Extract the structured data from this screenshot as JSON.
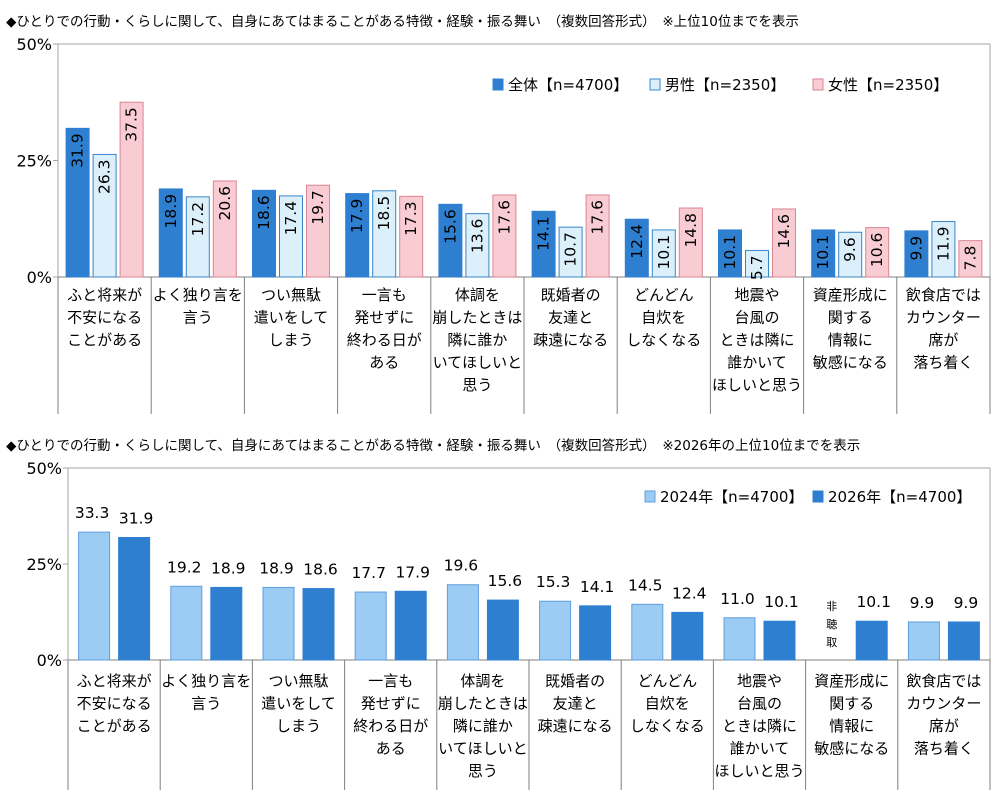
{
  "colors": {
    "total": "#2f7fd1",
    "male": "#dcf0fb",
    "male_stroke": "#3a85c8",
    "female": "#f9ccd3",
    "female_stroke": "#d98592",
    "y2024": "#9ccbf4",
    "y2024_stroke": "#5f9fdc",
    "y2026": "#2f7fd1",
    "grid": "#d9d9d9",
    "axis": "#a6a6a6"
  },
  "chart_data": [
    {
      "type": "bar",
      "title": "◆ひとりでの行動・くらしに関して、自身にあてはまることがある特徴・経験・振る舞い　（複数回答形式）　※上位10位までを表示",
      "categories": [
        [
          "ふと将来が",
          "不安になる",
          "ことがある"
        ],
        [
          "よく独り言を",
          "言う"
        ],
        [
          "つい無駄",
          "遣いをして",
          "しまう"
        ],
        [
          "一言も",
          "発せずに",
          "終わる日が",
          "ある"
        ],
        [
          "体調を",
          "崩したときは",
          "隣に誰か",
          "いてほしいと",
          "思う"
        ],
        [
          "既婚者の",
          "友達と",
          "疎遠になる"
        ],
        [
          "どんどん",
          "自炊を",
          "しなくなる"
        ],
        [
          "地震や",
          "台風の",
          "ときは隣に",
          "誰かいて",
          "ほしいと思う"
        ],
        [
          "資産形成に",
          "関する",
          "情報に",
          "敏感になる"
        ],
        [
          "飲食店では",
          "カウンター",
          "席が",
          "落ち着く"
        ]
      ],
      "series": [
        {
          "name": "全体【n=4700】",
          "values": [
            31.9,
            18.9,
            18.6,
            17.9,
            15.6,
            14.1,
            12.4,
            10.1,
            10.1,
            9.9
          ],
          "labels": [
            "31.9",
            "18.9",
            "18.6",
            "17.9",
            "15.6",
            "14.1",
            "12.4",
            "10.1",
            "10.1",
            "9.9"
          ]
        },
        {
          "name": "男性【n=2350】",
          "values": [
            26.3,
            17.2,
            17.4,
            18.5,
            13.6,
            10.7,
            10.1,
            5.7,
            9.6,
            11.9
          ],
          "labels": [
            "26.3",
            "17.2",
            "17.4",
            "18.5",
            "13.6",
            "10.7",
            "10.1",
            "5.7",
            "9.6",
            "11.9"
          ]
        },
        {
          "name": "女性【n=2350】",
          "values": [
            37.5,
            20.6,
            19.7,
            17.3,
            17.6,
            17.6,
            14.8,
            14.6,
            10.6,
            7.8
          ],
          "labels": [
            "37.5",
            "20.6",
            "19.7",
            "17.3",
            "17.6",
            "17.6",
            "14.8",
            "14.6",
            "10.6",
            "7.8"
          ]
        }
      ],
      "ylim": [
        0,
        50
      ],
      "yticks": [
        "0%",
        "25%",
        "50%"
      ],
      "legend": "top-right",
      "grid": false
    },
    {
      "type": "bar",
      "title": "◆ひとりでの行動・くらしに関して、自身にあてはまることがある特徴・経験・振る舞い　（複数回答形式）　※2026年の上位10位までを表示",
      "categories": [
        [
          "ふと将来が",
          "不安になる",
          "ことがある"
        ],
        [
          "よく独り言を",
          "言う"
        ],
        [
          "つい無駄",
          "遣いをして",
          "しまう"
        ],
        [
          "一言も",
          "発せずに",
          "終わる日が",
          "ある"
        ],
        [
          "体調を",
          "崩したときは",
          "隣に誰か",
          "いてほしいと",
          "思う"
        ],
        [
          "既婚者の",
          "友達と",
          "疎遠になる"
        ],
        [
          "どんどん",
          "自炊を",
          "しなくなる"
        ],
        [
          "地震や",
          "台風の",
          "ときは隣に",
          "誰かいて",
          "ほしいと思う"
        ],
        [
          "資産形成に",
          "関する",
          "情報に",
          "敏感になる"
        ],
        [
          "飲食店では",
          "カウンター",
          "席が",
          "落ち着く"
        ]
      ],
      "series": [
        {
          "name": "2024年【n=4700】",
          "values": [
            33.3,
            19.2,
            18.9,
            17.7,
            19.6,
            15.3,
            14.5,
            11.0,
            null,
            9.9
          ],
          "labels": [
            "33.3",
            "19.2",
            "18.9",
            "17.7",
            "19.6",
            "15.3",
            "14.5",
            "11.0",
            "",
            "9.9"
          ]
        },
        {
          "name": "2026年【n=4700】",
          "values": [
            31.9,
            18.9,
            18.6,
            17.9,
            15.6,
            14.1,
            12.4,
            10.1,
            10.1,
            9.9
          ],
          "labels": [
            "31.9",
            "18.9",
            "18.6",
            "17.9",
            "15.6",
            "14.1",
            "12.4",
            "10.1",
            "10.1",
            "9.9"
          ]
        }
      ],
      "annotations": [
        {
          "category_index": 8,
          "series": "2024年【n=4700】",
          "text": [
            "非",
            "聴",
            "取"
          ]
        }
      ],
      "ylim": [
        0,
        50
      ],
      "yticks": [
        "0%",
        "25%",
        "50%"
      ],
      "legend": "top-right",
      "grid": false
    }
  ]
}
